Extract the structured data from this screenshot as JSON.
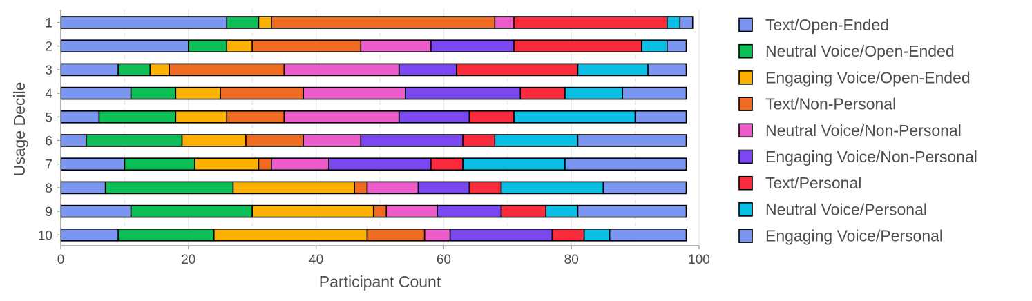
{
  "chart_data": {
    "type": "bar",
    "orientation": "horizontal",
    "stacked": true,
    "xlabel": "Participant Count",
    "ylabel": "Usage Decile",
    "xlim": [
      0,
      100
    ],
    "xticks": [
      0,
      20,
      40,
      60,
      80,
      100
    ],
    "grid": true,
    "legend_position": "right",
    "categories": [
      "1",
      "2",
      "3",
      "4",
      "5",
      "6",
      "7",
      "8",
      "9",
      "10"
    ],
    "series": [
      {
        "name": "Text/Open-Ended",
        "color": "#7b96f0",
        "values": [
          26,
          20,
          9,
          11,
          6,
          4,
          10,
          7,
          11,
          9
        ]
      },
      {
        "name": "Neutral Voice/Open-Ended",
        "color": "#0bbf56",
        "values": [
          5,
          6,
          5,
          7,
          12,
          15,
          11,
          20,
          19,
          15
        ]
      },
      {
        "name": "Engaging Voice/Open-Ended",
        "color": "#fcb103",
        "values": [
          2,
          4,
          3,
          7,
          8,
          10,
          10,
          19,
          19,
          24
        ]
      },
      {
        "name": "Text/Non-Personal",
        "color": "#f06b22",
        "values": [
          35,
          17,
          18,
          13,
          9,
          9,
          2,
          2,
          2,
          9
        ]
      },
      {
        "name": "Neutral Voice/Non-Personal",
        "color": "#ec5dcb",
        "values": [
          3,
          11,
          18,
          16,
          18,
          9,
          9,
          8,
          8,
          4
        ]
      },
      {
        "name": "Engaging Voice/Non-Personal",
        "color": "#7a47f0",
        "values": [
          0,
          13,
          9,
          18,
          11,
          16,
          16,
          8,
          10,
          16
        ]
      },
      {
        "name": "Text/Personal",
        "color": "#fb2b3e",
        "values": [
          24,
          20,
          19,
          7,
          7,
          5,
          5,
          5,
          7,
          5
        ]
      },
      {
        "name": "Neutral Voice/Personal",
        "color": "#0bbfe4",
        "values": [
          2,
          4,
          11,
          9,
          19,
          13,
          16,
          16,
          5,
          4
        ]
      },
      {
        "name": "Engaging Voice/Personal",
        "color": "#7b96f0",
        "values": [
          2,
          3,
          6,
          10,
          8,
          17,
          19,
          13,
          17,
          12
        ]
      }
    ]
  }
}
